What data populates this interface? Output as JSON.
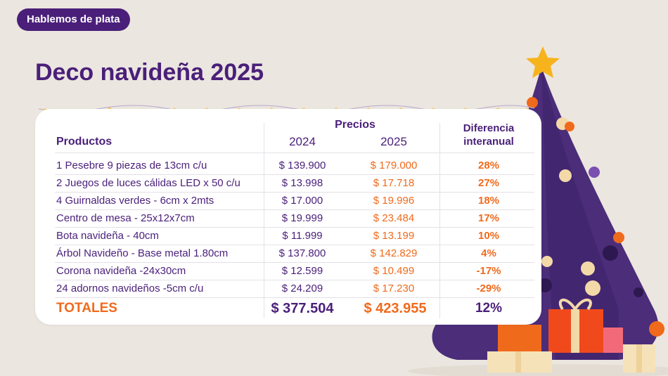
{
  "badge": "Hablemos de plata",
  "title": "Deco navideña 2025",
  "table": {
    "header_products": "Productos",
    "header_prices": "Precios",
    "header_2024": "2024",
    "header_2025": "2025",
    "header_diff_line1": "Diferencia",
    "header_diff_line2": "interanual",
    "rows": [
      {
        "product": "1 Pesebre 9 piezas de 13cm c/u",
        "p2024": "$ 139.900",
        "p2025": "$ 179.000",
        "diff": "28%"
      },
      {
        "product": "2 Juegos de luces cálidas LED x 50 c/u",
        "p2024": "$ 13.998",
        "p2025": "$ 17.718",
        "diff": "27%"
      },
      {
        "product": "4 Guirnaldas verdes - 6cm x 2mts",
        "p2024": "$ 17.000",
        "p2025": "$ 19.996",
        "diff": "18%"
      },
      {
        "product": "Centro de mesa - 25x12x7cm",
        "p2024": "$ 19.999",
        "p2025": "$ 23.484",
        "diff": "17%"
      },
      {
        "product": "Bota navideña - 40cm",
        "p2024": "$ 11.999",
        "p2025": "$ 13.199",
        "diff": "10%"
      },
      {
        "product": "Árbol Navideño - Base metal 1.80cm",
        "p2024": "$ 137.800",
        "p2025": "$ 142.829",
        "diff": "4%"
      },
      {
        "product": "Corona navideña -24x30cm",
        "p2024": "$ 12.599",
        "p2025": "$ 10.499",
        "diff": "-17%"
      },
      {
        "product": "24 adornos navideños -5cm c/u",
        "p2024": "$ 24.209",
        "p2025": "$ 17.230",
        "diff": "-29%"
      }
    ],
    "totals": {
      "label": "TOTALES",
      "p2024": "$ 377.504",
      "p2025": "$ 423.955",
      "diff": "12%"
    }
  },
  "colors": {
    "purple": "#4a1f7a",
    "orange": "#f06a1c",
    "background": "#ebe6df"
  }
}
